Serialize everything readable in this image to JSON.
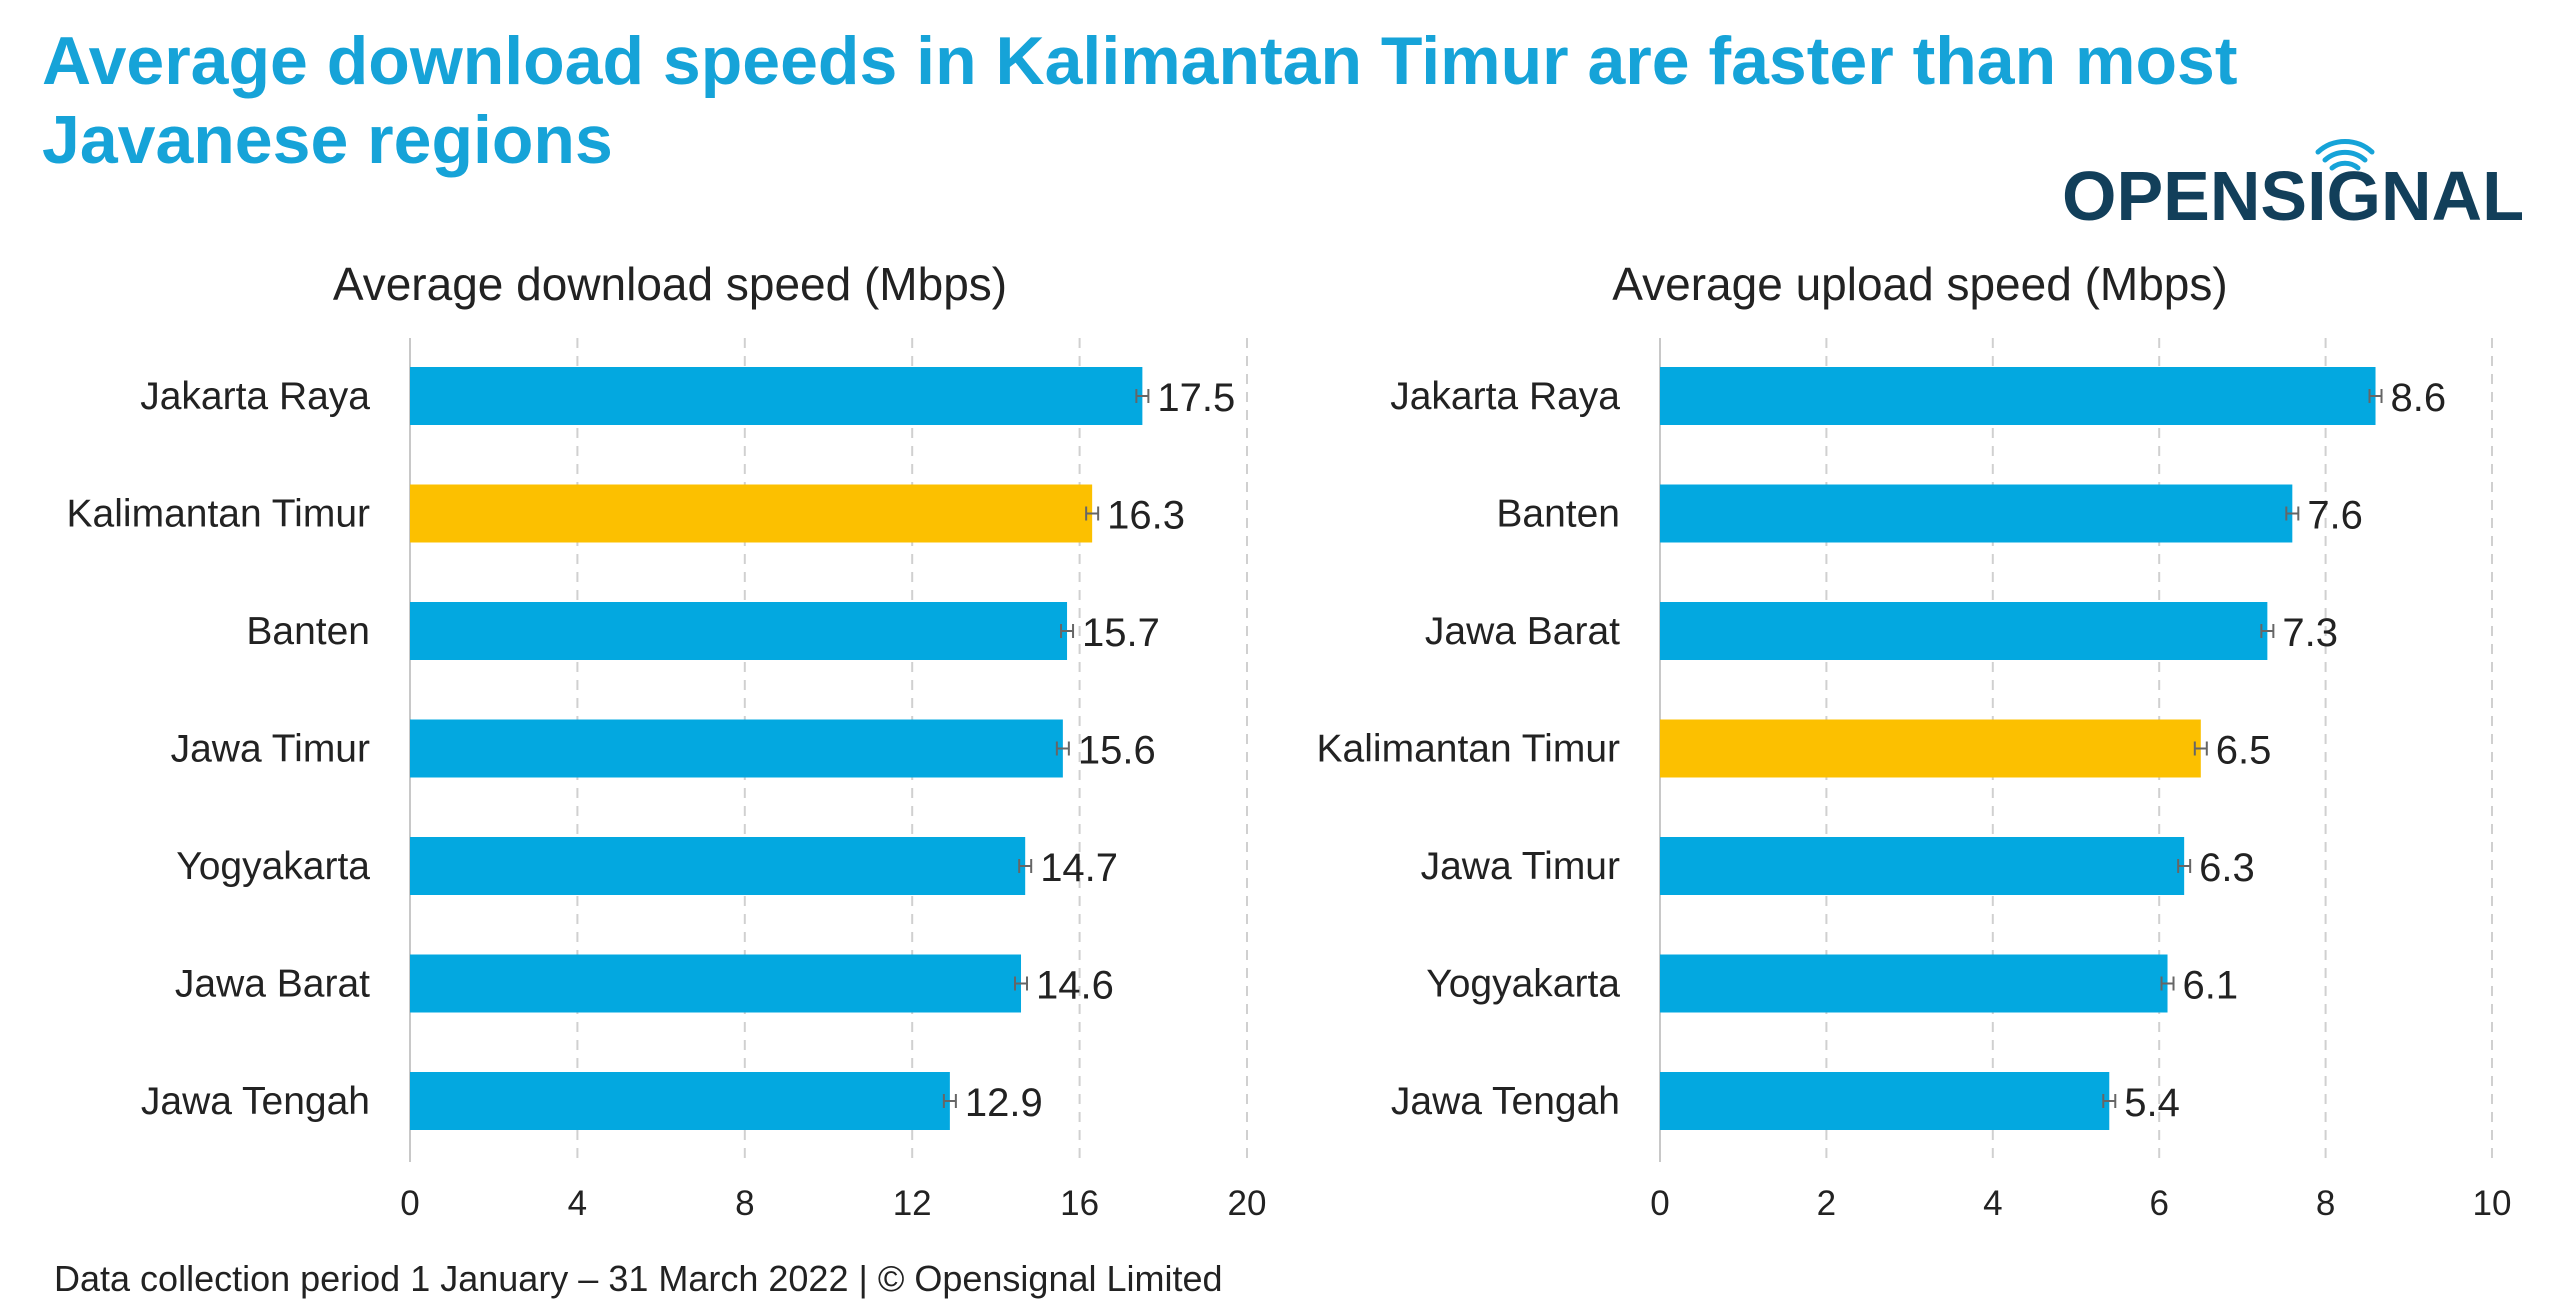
{
  "headline": "Average download speeds in Kalimantan Timur are faster than most Javanese regions",
  "logo": {
    "text_before": "OPENS",
    "text_i": "I",
    "text_after": "GNAL",
    "color": "#123f5a",
    "accent": "#16a3d8"
  },
  "footer": "Data collection period 1 January – 31 March 2022  |  © Opensignal Limited",
  "colors": {
    "bar": "#03a8e0",
    "highlight": "#fcc000",
    "grid": "#d0d0d0",
    "axis": "#c8c8c8",
    "error": "#666666"
  },
  "chart_data": [
    {
      "type": "bar",
      "orientation": "horizontal",
      "title": "Average download speed (Mbps)",
      "categories": [
        "Jakarta Raya",
        "Kalimantan Timur",
        "Banten",
        "Jawa Timur",
        "Yogyakarta",
        "Jawa Barat",
        "Jawa Tengah"
      ],
      "values": [
        17.5,
        16.3,
        15.7,
        15.6,
        14.7,
        14.6,
        12.9
      ],
      "value_labels": [
        "17.5",
        "16.3",
        "15.7",
        "15.6",
        "14.7",
        "14.6",
        "12.9"
      ],
      "highlight": "Kalimantan Timur",
      "xlim": [
        0,
        20
      ],
      "ticks": [
        0,
        4,
        8,
        12,
        16,
        20
      ],
      "tick_labels": [
        "0",
        "4",
        "8",
        "12",
        "16",
        "20"
      ],
      "grid": true,
      "error_bars": true
    },
    {
      "type": "bar",
      "orientation": "horizontal",
      "title": "Average upload speed   (Mbps)",
      "categories": [
        "Jakarta Raya",
        "Banten",
        "Jawa Barat",
        "Kalimantan Timur",
        "Jawa Timur",
        "Yogyakarta",
        "Jawa Tengah"
      ],
      "values": [
        8.6,
        7.6,
        7.3,
        6.5,
        6.3,
        6.1,
        5.4
      ],
      "value_labels": [
        "8.6",
        "7.6",
        "7.3",
        "6.5",
        "6.3",
        "6.1",
        "5.4"
      ],
      "highlight": "Kalimantan Timur",
      "xlim": [
        0,
        10
      ],
      "ticks": [
        0,
        2,
        4,
        6,
        8,
        10
      ],
      "tick_labels": [
        "0",
        "2",
        "4",
        "6",
        "8",
        "10"
      ],
      "grid": true,
      "error_bars": true
    }
  ]
}
